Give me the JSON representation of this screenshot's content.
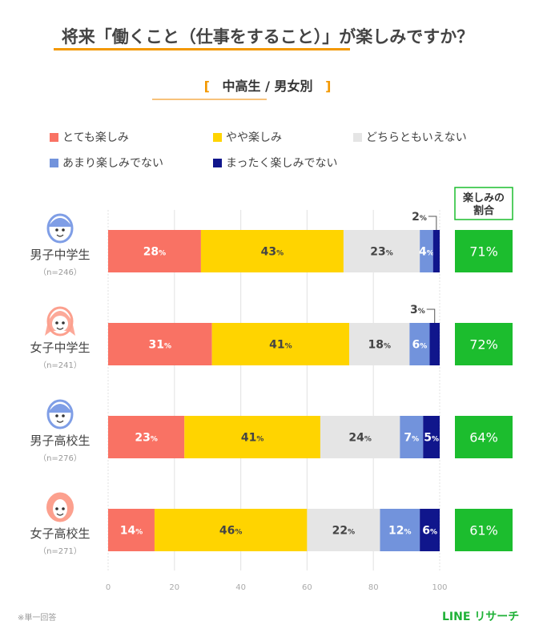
{
  "title": "将来「働くこと（仕事をすること）」が楽しみですか？",
  "subtitle": {
    "open": "[",
    "text": "中高生 / 男女別",
    "close": "]"
  },
  "footer_note": "※単一回答",
  "brand": "LINE リサーチ",
  "chart_data": {
    "type": "bar",
    "orientation": "horizontal",
    "stacked": "percent",
    "xlim": [
      0,
      100
    ],
    "xticks": [
      "0",
      "20",
      "40",
      "60",
      "80",
      "100"
    ],
    "grid": true,
    "legend_position": "top",
    "series": [
      {
        "name": "とても楽しみ",
        "color": "#f97264",
        "label_color": "#ffffff"
      },
      {
        "name": "やや楽しみ",
        "color": "#ffd400",
        "label_color": "#444444"
      },
      {
        "name": "どちらともいえない",
        "color": "#e5e5e5",
        "label_color": "#444444"
      },
      {
        "name": "あまり楽しみでない",
        "color": "#7293dc",
        "label_color": "#ffffff"
      },
      {
        "name": "まったく楽しみでない",
        "color": "#10168c",
        "label_color": "#ffffff"
      }
    ],
    "categories": [
      {
        "label": "男子中学生",
        "n": "（n=246）",
        "icon": "boy-face-icon",
        "icon_color": "#7f9ee6",
        "values": [
          28,
          43,
          23,
          4,
          2
        ],
        "total": "71%"
      },
      {
        "label": "女子中学生",
        "n": "（n=241）",
        "icon": "girl-face-icon",
        "icon_color": "#fca08e",
        "values": [
          31,
          41,
          18,
          6,
          3
        ],
        "total": "72%"
      },
      {
        "label": "男子高校生",
        "n": "（n=276）",
        "icon": "boy-face-icon",
        "icon_color": "#7f9ee6",
        "values": [
          23,
          41,
          24,
          7,
          5
        ],
        "total": "64%"
      },
      {
        "label": "女子高校生",
        "n": "（n=271）",
        "icon": "woman-face-icon",
        "icon_color": "#fca08e",
        "values": [
          14,
          46,
          22,
          12,
          6
        ],
        "total": "61%"
      }
    ],
    "total_header": [
      "楽しみの",
      "割合"
    ],
    "total_color": "#1cbd2e",
    "unit": "%"
  }
}
